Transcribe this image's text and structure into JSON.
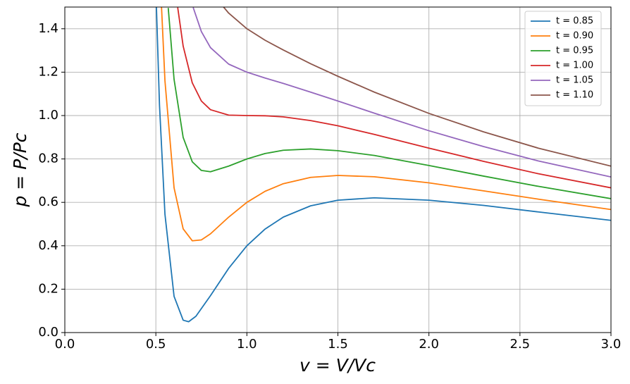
{
  "chart_data": {
    "type": "line",
    "xlabel": "v = V/Vc",
    "ylabel": "p = P/Pc",
    "xlim": [
      0,
      3
    ],
    "ylim": [
      0,
      1.5
    ],
    "xticks": [
      {
        "value": 0,
        "label": "0.0"
      },
      {
        "value": 0.5,
        "label": "0.5"
      },
      {
        "value": 1,
        "label": "1.0"
      },
      {
        "value": 1.5,
        "label": "1.5"
      },
      {
        "value": 2,
        "label": "2.0"
      },
      {
        "value": 2.5,
        "label": "2.5"
      },
      {
        "value": 3,
        "label": "3.0"
      }
    ],
    "yticks": [
      {
        "value": 0,
        "label": "0.0"
      },
      0.2,
      0.4,
      0.6,
      0.8,
      {
        "value": 1,
        "label": "1.0"
      },
      1.2,
      1.4
    ],
    "grid": true,
    "legend": "upper-right",
    "series": [
      {
        "name": "t = 0.85",
        "color": "#1f77b4",
        "x": [
          0.503,
          0.52,
          0.55,
          0.6,
          0.65,
          0.68,
          0.72,
          0.8,
          0.9,
          1.0,
          1.1,
          1.2,
          1.35,
          1.5,
          1.7,
          2.0,
          2.3,
          2.6,
          3.0
        ],
        "values": [
          1.503,
          1.048,
          0.545,
          0.167,
          0.057,
          0.05,
          0.075,
          0.17,
          0.296,
          0.4,
          0.477,
          0.532,
          0.584,
          0.61,
          0.621,
          0.61,
          0.586,
          0.556,
          0.517
        ]
      },
      {
        "name": "t = 0.90",
        "color": "#ff7f0e",
        "x": [
          0.531,
          0.55,
          0.6,
          0.65,
          0.7,
          0.75,
          0.8,
          0.9,
          1.0,
          1.1,
          1.2,
          1.35,
          1.5,
          1.7,
          2.0,
          2.3,
          2.6,
          3.0
        ],
        "values": [
          1.502,
          1.16,
          0.667,
          0.478,
          0.423,
          0.427,
          0.455,
          0.532,
          0.6,
          0.651,
          0.686,
          0.715,
          0.724,
          0.718,
          0.69,
          0.653,
          0.615,
          0.567
        ]
      },
      {
        "name": "t = 0.95",
        "color": "#2ca02c",
        "x": [
          0.568,
          0.6,
          0.65,
          0.7,
          0.75,
          0.8,
          0.9,
          1.0,
          1.1,
          1.2,
          1.35,
          1.5,
          1.7,
          2.0,
          2.3,
          2.6,
          3.0
        ],
        "values": [
          1.496,
          1.167,
          0.899,
          0.787,
          0.747,
          0.741,
          0.767,
          0.8,
          0.825,
          0.84,
          0.846,
          0.838,
          0.816,
          0.77,
          0.721,
          0.674,
          0.617
        ]
      },
      {
        "name": "t = 1.00",
        "color": "#d62728",
        "x": [
          0.62,
          0.65,
          0.7,
          0.75,
          0.8,
          0.9,
          1.0,
          1.1,
          1.2,
          1.35,
          1.5,
          1.7,
          2.0,
          2.3,
          2.6,
          3.0
        ],
        "values": [
          1.498,
          1.32,
          1.151,
          1.067,
          1.027,
          1.002,
          1.0,
          0.999,
          0.994,
          0.977,
          0.953,
          0.913,
          0.85,
          0.789,
          0.732,
          0.667
        ]
      },
      {
        "name": "t = 1.05",
        "color": "#9467bd",
        "x": [
          0.705,
          0.75,
          0.8,
          0.9,
          1.0,
          1.1,
          1.2,
          1.35,
          1.5,
          1.7,
          2.0,
          2.3,
          2.6,
          3.0
        ],
        "values": [
          1.498,
          1.387,
          1.313,
          1.237,
          1.2,
          1.173,
          1.148,
          1.108,
          1.067,
          1.011,
          0.93,
          0.857,
          0.791,
          0.717
        ]
      },
      {
        "name": "t = 1.10",
        "color": "#8c564b",
        "x": [
          0.87,
          0.9,
          1.0,
          1.1,
          1.2,
          1.35,
          1.5,
          1.7,
          2.0,
          2.3,
          2.6,
          3.0
        ],
        "values": [
          1.502,
          1.472,
          1.4,
          1.347,
          1.302,
          1.239,
          1.181,
          1.108,
          1.01,
          0.925,
          0.85,
          0.767
        ]
      }
    ]
  }
}
